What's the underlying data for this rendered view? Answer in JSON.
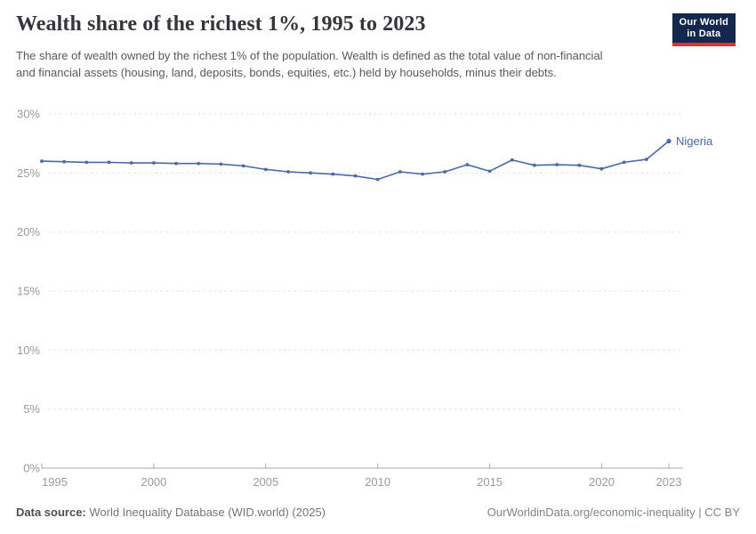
{
  "header": {
    "title": "Wealth share of the richest 1%, 1995 to 2023",
    "subtitle": "The share of wealth owned by the richest 1% of the population. Wealth is defined as the total value of non-financial and financial assets (housing, land, deposits, bonds, equities, etc.) held by households, minus their debts.",
    "logo": {
      "line1": "Our World",
      "line2": "in Data",
      "bg_color": "#12294d",
      "stripe_color": "#e0312e"
    }
  },
  "chart_data": {
    "type": "line",
    "title": "Wealth share of the richest 1%, 1995 to 2023",
    "x": [
      1995,
      1996,
      1997,
      1998,
      1999,
      2000,
      2001,
      2002,
      2003,
      2004,
      2005,
      2006,
      2007,
      2008,
      2009,
      2010,
      2011,
      2012,
      2013,
      2014,
      2015,
      2016,
      2017,
      2018,
      2019,
      2020,
      2021,
      2022,
      2023
    ],
    "series": [
      {
        "name": "Nigeria",
        "color": "#4a69a8",
        "values": [
          26.0,
          25.95,
          25.9,
          25.9,
          25.85,
          25.85,
          25.8,
          25.8,
          25.75,
          25.6,
          25.3,
          25.1,
          25.0,
          24.9,
          24.75,
          24.45,
          25.1,
          24.9,
          25.1,
          25.7,
          25.15,
          26.1,
          25.65,
          25.7,
          25.65,
          25.35,
          25.9,
          26.15,
          27.7
        ]
      }
    ],
    "xticks": [
      1995,
      2000,
      2005,
      2010,
      2015,
      2020,
      2023
    ],
    "yticks": [
      0,
      5,
      10,
      15,
      20,
      25,
      30
    ],
    "ytick_suffix": "%",
    "xlabel": "",
    "ylabel": "",
    "ylim": [
      0,
      30
    ],
    "xlim": [
      1995,
      2023
    ],
    "grid": "horizontal-dashed",
    "legend": "end-of-line-label"
  },
  "footer": {
    "datasource_label": "Data source:",
    "datasource_value": " World Inequality Database (WID.world) (2025)",
    "origin_url": "OurWorldinData.org/economic-inequality | CC BY"
  }
}
